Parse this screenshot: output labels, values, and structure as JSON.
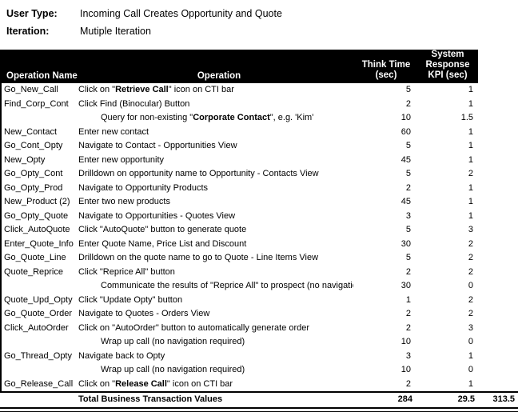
{
  "meta": {
    "user_type": {
      "label": "User Type:",
      "value": "Incoming Call Creates Opportunity and Quote"
    },
    "iteration": {
      "label": "Iteration:",
      "value": "Mutiple Iteration"
    }
  },
  "table": {
    "header": {
      "operation_name": "Operation Name",
      "operation": "Operation",
      "think_time_lines": [
        "Think Time",
        "(sec)"
      ],
      "kpi_lines": [
        "System",
        "Response",
        "KPI (sec)"
      ]
    },
    "rows": [
      {
        "name": "Go_New_Call",
        "indent": false,
        "op": [
          {
            "t": "Click on \"",
            "b": false
          },
          {
            "t": "Retrieve Call",
            "b": true
          },
          {
            "t": "\" icon on CTI bar",
            "b": false
          }
        ],
        "think": "5",
        "kpi": "1"
      },
      {
        "name": "Find_Corp_Cont",
        "indent": false,
        "op": [
          {
            "t": "Click Find (Binocular) Button",
            "b": false
          }
        ],
        "think": "2",
        "kpi": "1"
      },
      {
        "name": "",
        "indent": true,
        "op": [
          {
            "t": "Query for non-existing \"",
            "b": false
          },
          {
            "t": "Corporate Contact",
            "b": true
          },
          {
            "t": "\", e.g. 'Kim'",
            "b": false
          }
        ],
        "think": "10",
        "kpi": "1.5"
      },
      {
        "name": "New_Contact",
        "indent": false,
        "op": [
          {
            "t": "Enter new contact",
            "b": false
          }
        ],
        "think": "60",
        "kpi": "1"
      },
      {
        "name": "Go_Cont_Opty",
        "indent": false,
        "op": [
          {
            "t": "Navigate to Contact - Opportunities View",
            "b": false
          }
        ],
        "think": "5",
        "kpi": "1"
      },
      {
        "name": "New_Opty",
        "indent": false,
        "op": [
          {
            "t": "Enter new opportunity",
            "b": false
          }
        ],
        "think": "45",
        "kpi": "1"
      },
      {
        "name": "Go_Opty_Cont",
        "indent": false,
        "op": [
          {
            "t": "Drilldown on opportunity name to Opportunity - Contacts View",
            "b": false
          }
        ],
        "think": "5",
        "kpi": "2"
      },
      {
        "name": "Go_Opty_Prod",
        "indent": false,
        "op": [
          {
            "t": "Navigate to Opportunity Products",
            "b": false
          }
        ],
        "think": "2",
        "kpi": "1"
      },
      {
        "name": "New_Product (2)",
        "indent": false,
        "op": [
          {
            "t": "Enter two new products",
            "b": false
          }
        ],
        "think": "45",
        "kpi": "1"
      },
      {
        "name": "Go_Opty_Quote",
        "indent": false,
        "op": [
          {
            "t": "Navigate to Opportunities - Quotes View",
            "b": false
          }
        ],
        "think": "3",
        "kpi": "1"
      },
      {
        "name": "Click_AutoQuote",
        "indent": false,
        "op": [
          {
            "t": "Click \"AutoQuote\" button to generate quote",
            "b": false
          }
        ],
        "think": "5",
        "kpi": "3"
      },
      {
        "name": "Enter_Quote_Info",
        "indent": false,
        "op": [
          {
            "t": "Enter Quote Name, Price List and Discount",
            "b": false
          }
        ],
        "think": "30",
        "kpi": "2"
      },
      {
        "name": "Go_Quote_Line",
        "indent": false,
        "op": [
          {
            "t": "Drilldown on the quote name to go to Quote - Line Items View",
            "b": false
          }
        ],
        "think": "5",
        "kpi": "2"
      },
      {
        "name": "Quote_Reprice",
        "indent": false,
        "op": [
          {
            "t": "Click \"Reprice All\" button",
            "b": false
          }
        ],
        "think": "2",
        "kpi": "2"
      },
      {
        "name": "",
        "indent": true,
        "op": [
          {
            "t": "Communicate the results of \"Reprice All\" to prospect (no navigation required)",
            "b": false
          }
        ],
        "think": "30",
        "kpi": "0"
      },
      {
        "name": "Quote_Upd_Opty",
        "indent": false,
        "op": [
          {
            "t": "Click \"Update Opty\" button",
            "b": false
          }
        ],
        "think": "1",
        "kpi": "2"
      },
      {
        "name": "Go_Quote_Order",
        "indent": false,
        "op": [
          {
            "t": "Navigate to Quotes - Orders View",
            "b": false
          }
        ],
        "think": "2",
        "kpi": "2"
      },
      {
        "name": "Click_AutoOrder",
        "indent": false,
        "op": [
          {
            "t": "Click on \"AutoOrder\" button to automatically generate order",
            "b": false
          }
        ],
        "think": "2",
        "kpi": "3"
      },
      {
        "name": "",
        "indent": true,
        "op": [
          {
            "t": "Wrap up call (no navigation required)",
            "b": false
          }
        ],
        "think": "10",
        "kpi": "0"
      },
      {
        "name": "Go_Thread_Opty",
        "indent": false,
        "op": [
          {
            "t": "Navigate back to Opty",
            "b": false
          }
        ],
        "think": "3",
        "kpi": "1"
      },
      {
        "name": "",
        "indent": true,
        "op": [
          {
            "t": "Wrap up call (no navigation required)",
            "b": false
          }
        ],
        "think": "10",
        "kpi": "0"
      },
      {
        "name": "Go_Release_Call",
        "indent": false,
        "op": [
          {
            "t": "Click on \"",
            "b": false
          },
          {
            "t": "Release Call",
            "b": true
          },
          {
            "t": "\" icon on CTI bar",
            "b": false
          }
        ],
        "think": "2",
        "kpi": "1"
      }
    ],
    "total": {
      "label": "Total Business Transaction Values",
      "think_time": "284",
      "kpi": "29.5",
      "grand_total": "313.5"
    }
  },
  "colors": {
    "header_bg": "#000000",
    "header_text": "#ffffff",
    "text": "#000000"
  }
}
